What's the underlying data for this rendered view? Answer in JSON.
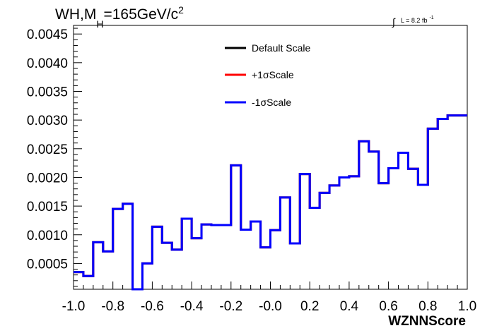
{
  "chart_data": {
    "type": "line",
    "title": {
      "prefix": "WH,M",
      "subscript": "H",
      "value": "=165GeV/c",
      "superscript": "2"
    },
    "luminosity": {
      "integral": "∫",
      "text": "L = 8.2 fb",
      "superscript": "-1"
    },
    "xlabel": "WZNNScore",
    "ylabel": "",
    "xlim": [
      -1.0,
      1.0
    ],
    "ylim": [
      5e-05,
      0.00465
    ],
    "x_ticks": [
      -1.0,
      -0.8,
      -0.6,
      -0.4,
      -0.2,
      0.0,
      0.2,
      0.4,
      0.6,
      0.8,
      1.0
    ],
    "x_tick_labels": [
      "-1.0",
      "-0.8",
      "-0.6",
      "-0.4",
      "-0.2",
      "-0.0",
      "0.2",
      "0.4",
      "0.6",
      "0.8",
      "1.0"
    ],
    "y_ticks": [
      0.0005,
      0.001,
      0.0015,
      0.002,
      0.0025,
      0.003,
      0.0035,
      0.004,
      0.0045
    ],
    "y_tick_labels": [
      "0.0005",
      "0.0010",
      "0.0015",
      "0.0020",
      "0.0025",
      "0.0030",
      "0.0035",
      "0.0040",
      "0.0045"
    ],
    "bin_edges": [
      -1.0,
      -0.95,
      -0.9,
      -0.85,
      -0.8,
      -0.75,
      -0.7,
      -0.65,
      -0.6,
      -0.55,
      -0.5,
      -0.45,
      -0.4,
      -0.35,
      -0.3,
      -0.25,
      -0.2,
      -0.15,
      -0.1,
      -0.05,
      0.0,
      0.05,
      0.1,
      0.15,
      0.2,
      0.25,
      0.3,
      0.35,
      0.4,
      0.45,
      0.5,
      0.55,
      0.6,
      0.65,
      0.7,
      0.75,
      0.8,
      0.85,
      0.9,
      0.95,
      1.0
    ],
    "series": [
      {
        "name": "Default Scale",
        "color": "#000000",
        "values": [
          0.00035,
          0.00028,
          0.00087,
          0.00071,
          0.00145,
          0.00154,
          5e-05,
          0.0005,
          0.00114,
          0.00086,
          0.00074,
          0.00128,
          0.00094,
          0.00118,
          0.00117,
          0.00117,
          0.00221,
          0.00109,
          0.00123,
          0.00078,
          0.00108,
          0.00165,
          0.00085,
          0.00206,
          0.00147,
          0.00173,
          0.00186,
          0.002,
          0.00202,
          0.00263,
          0.00245,
          0.0019,
          0.00216,
          0.00243,
          0.00215,
          0.00187,
          0.00285,
          0.00302,
          0.00308,
          0.00308
        ]
      },
      {
        "name": "+1σScale",
        "color": "#ff0000",
        "values": [
          0.00035,
          0.00028,
          0.00087,
          0.00071,
          0.00145,
          0.00154,
          5e-05,
          0.0005,
          0.00114,
          0.00086,
          0.00074,
          0.00128,
          0.00094,
          0.00118,
          0.00117,
          0.00117,
          0.00221,
          0.00109,
          0.00123,
          0.00078,
          0.00108,
          0.00165,
          0.00085,
          0.00206,
          0.00147,
          0.00173,
          0.00186,
          0.002,
          0.00202,
          0.00263,
          0.00245,
          0.0019,
          0.00216,
          0.00243,
          0.00215,
          0.00187,
          0.00285,
          0.00302,
          0.00308,
          0.00308
        ]
      },
      {
        "name": "-1σScale",
        "color": "#0000ff",
        "values": [
          0.00035,
          0.00028,
          0.00087,
          0.00071,
          0.00145,
          0.00154,
          5e-05,
          0.0005,
          0.00114,
          0.00086,
          0.00074,
          0.00128,
          0.00094,
          0.00118,
          0.00117,
          0.00117,
          0.00221,
          0.00109,
          0.00123,
          0.00078,
          0.00108,
          0.00165,
          0.00085,
          0.00206,
          0.00147,
          0.00173,
          0.00186,
          0.002,
          0.00202,
          0.00263,
          0.00245,
          0.0019,
          0.00216,
          0.00243,
          0.00215,
          0.00187,
          0.00285,
          0.00302,
          0.00308,
          0.00308
        ]
      }
    ],
    "legend_position": "top-center",
    "grid": false
  }
}
